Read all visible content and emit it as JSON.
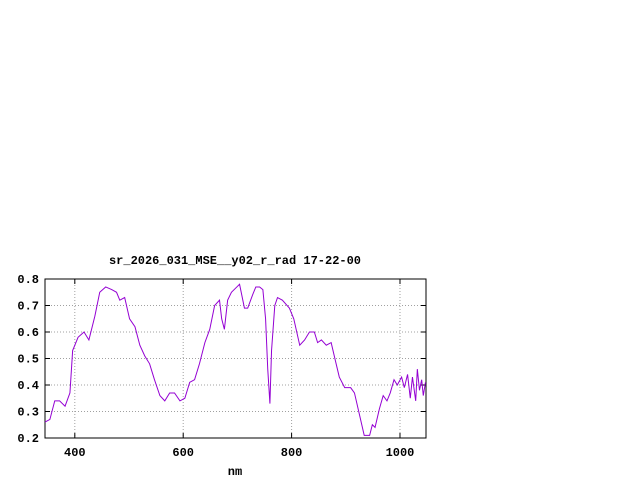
{
  "chart_data": {
    "type": "line",
    "title": "sr_2026_031_MSE__y02_r_rad 17-22-00",
    "x_label": "nm",
    "x": [
      345,
      354,
      363,
      372,
      382,
      391,
      396,
      406,
      417,
      426,
      437,
      446,
      457,
      468,
      477,
      483,
      492,
      501,
      511,
      520,
      529,
      538,
      547,
      557,
      566,
      575,
      584,
      594,
      603,
      612,
      621,
      630,
      640,
      649,
      658,
      667,
      671,
      676,
      682,
      689,
      699,
      704,
      713,
      719,
      728,
      734,
      741,
      747,
      752,
      756,
      760,
      763,
      769,
      774,
      783,
      796,
      804,
      815,
      824,
      833,
      842,
      848,
      855,
      864,
      873,
      881,
      888,
      898,
      909,
      916,
      925,
      934,
      944,
      949,
      954,
      962,
      969,
      976,
      982,
      989,
      995,
      1003,
      1008,
      1014,
      1019,
      1023,
      1029,
      1032,
      1036,
      1040,
      1043,
      1047
    ],
    "values": [
      0.26,
      0.27,
      0.34,
      0.34,
      0.32,
      0.37,
      0.53,
      0.58,
      0.6,
      0.57,
      0.66,
      0.75,
      0.77,
      0.76,
      0.75,
      0.72,
      0.73,
      0.65,
      0.62,
      0.55,
      0.51,
      0.48,
      0.42,
      0.36,
      0.34,
      0.37,
      0.37,
      0.34,
      0.35,
      0.41,
      0.42,
      0.48,
      0.56,
      0.61,
      0.7,
      0.72,
      0.65,
      0.61,
      0.72,
      0.75,
      0.77,
      0.78,
      0.69,
      0.69,
      0.74,
      0.77,
      0.77,
      0.76,
      0.65,
      0.46,
      0.33,
      0.53,
      0.7,
      0.73,
      0.72,
      0.69,
      0.65,
      0.55,
      0.57,
      0.6,
      0.6,
      0.56,
      0.57,
      0.55,
      0.56,
      0.49,
      0.43,
      0.39,
      0.39,
      0.37,
      0.29,
      0.21,
      0.21,
      0.25,
      0.24,
      0.31,
      0.36,
      0.34,
      0.37,
      0.42,
      0.4,
      0.43,
      0.39,
      0.44,
      0.35,
      0.43,
      0.34,
      0.46,
      0.38,
      0.42,
      0.36,
      0.41
    ],
    "color": "#9400d3",
    "xlim": [
      345,
      1048
    ],
    "ylim": [
      0.2,
      0.8
    ],
    "xticks": [
      400,
      600,
      800,
      1000
    ],
    "yticks": [
      0.2,
      0.3,
      0.4,
      0.5,
      0.6,
      0.7,
      0.8
    ],
    "grid": true
  }
}
